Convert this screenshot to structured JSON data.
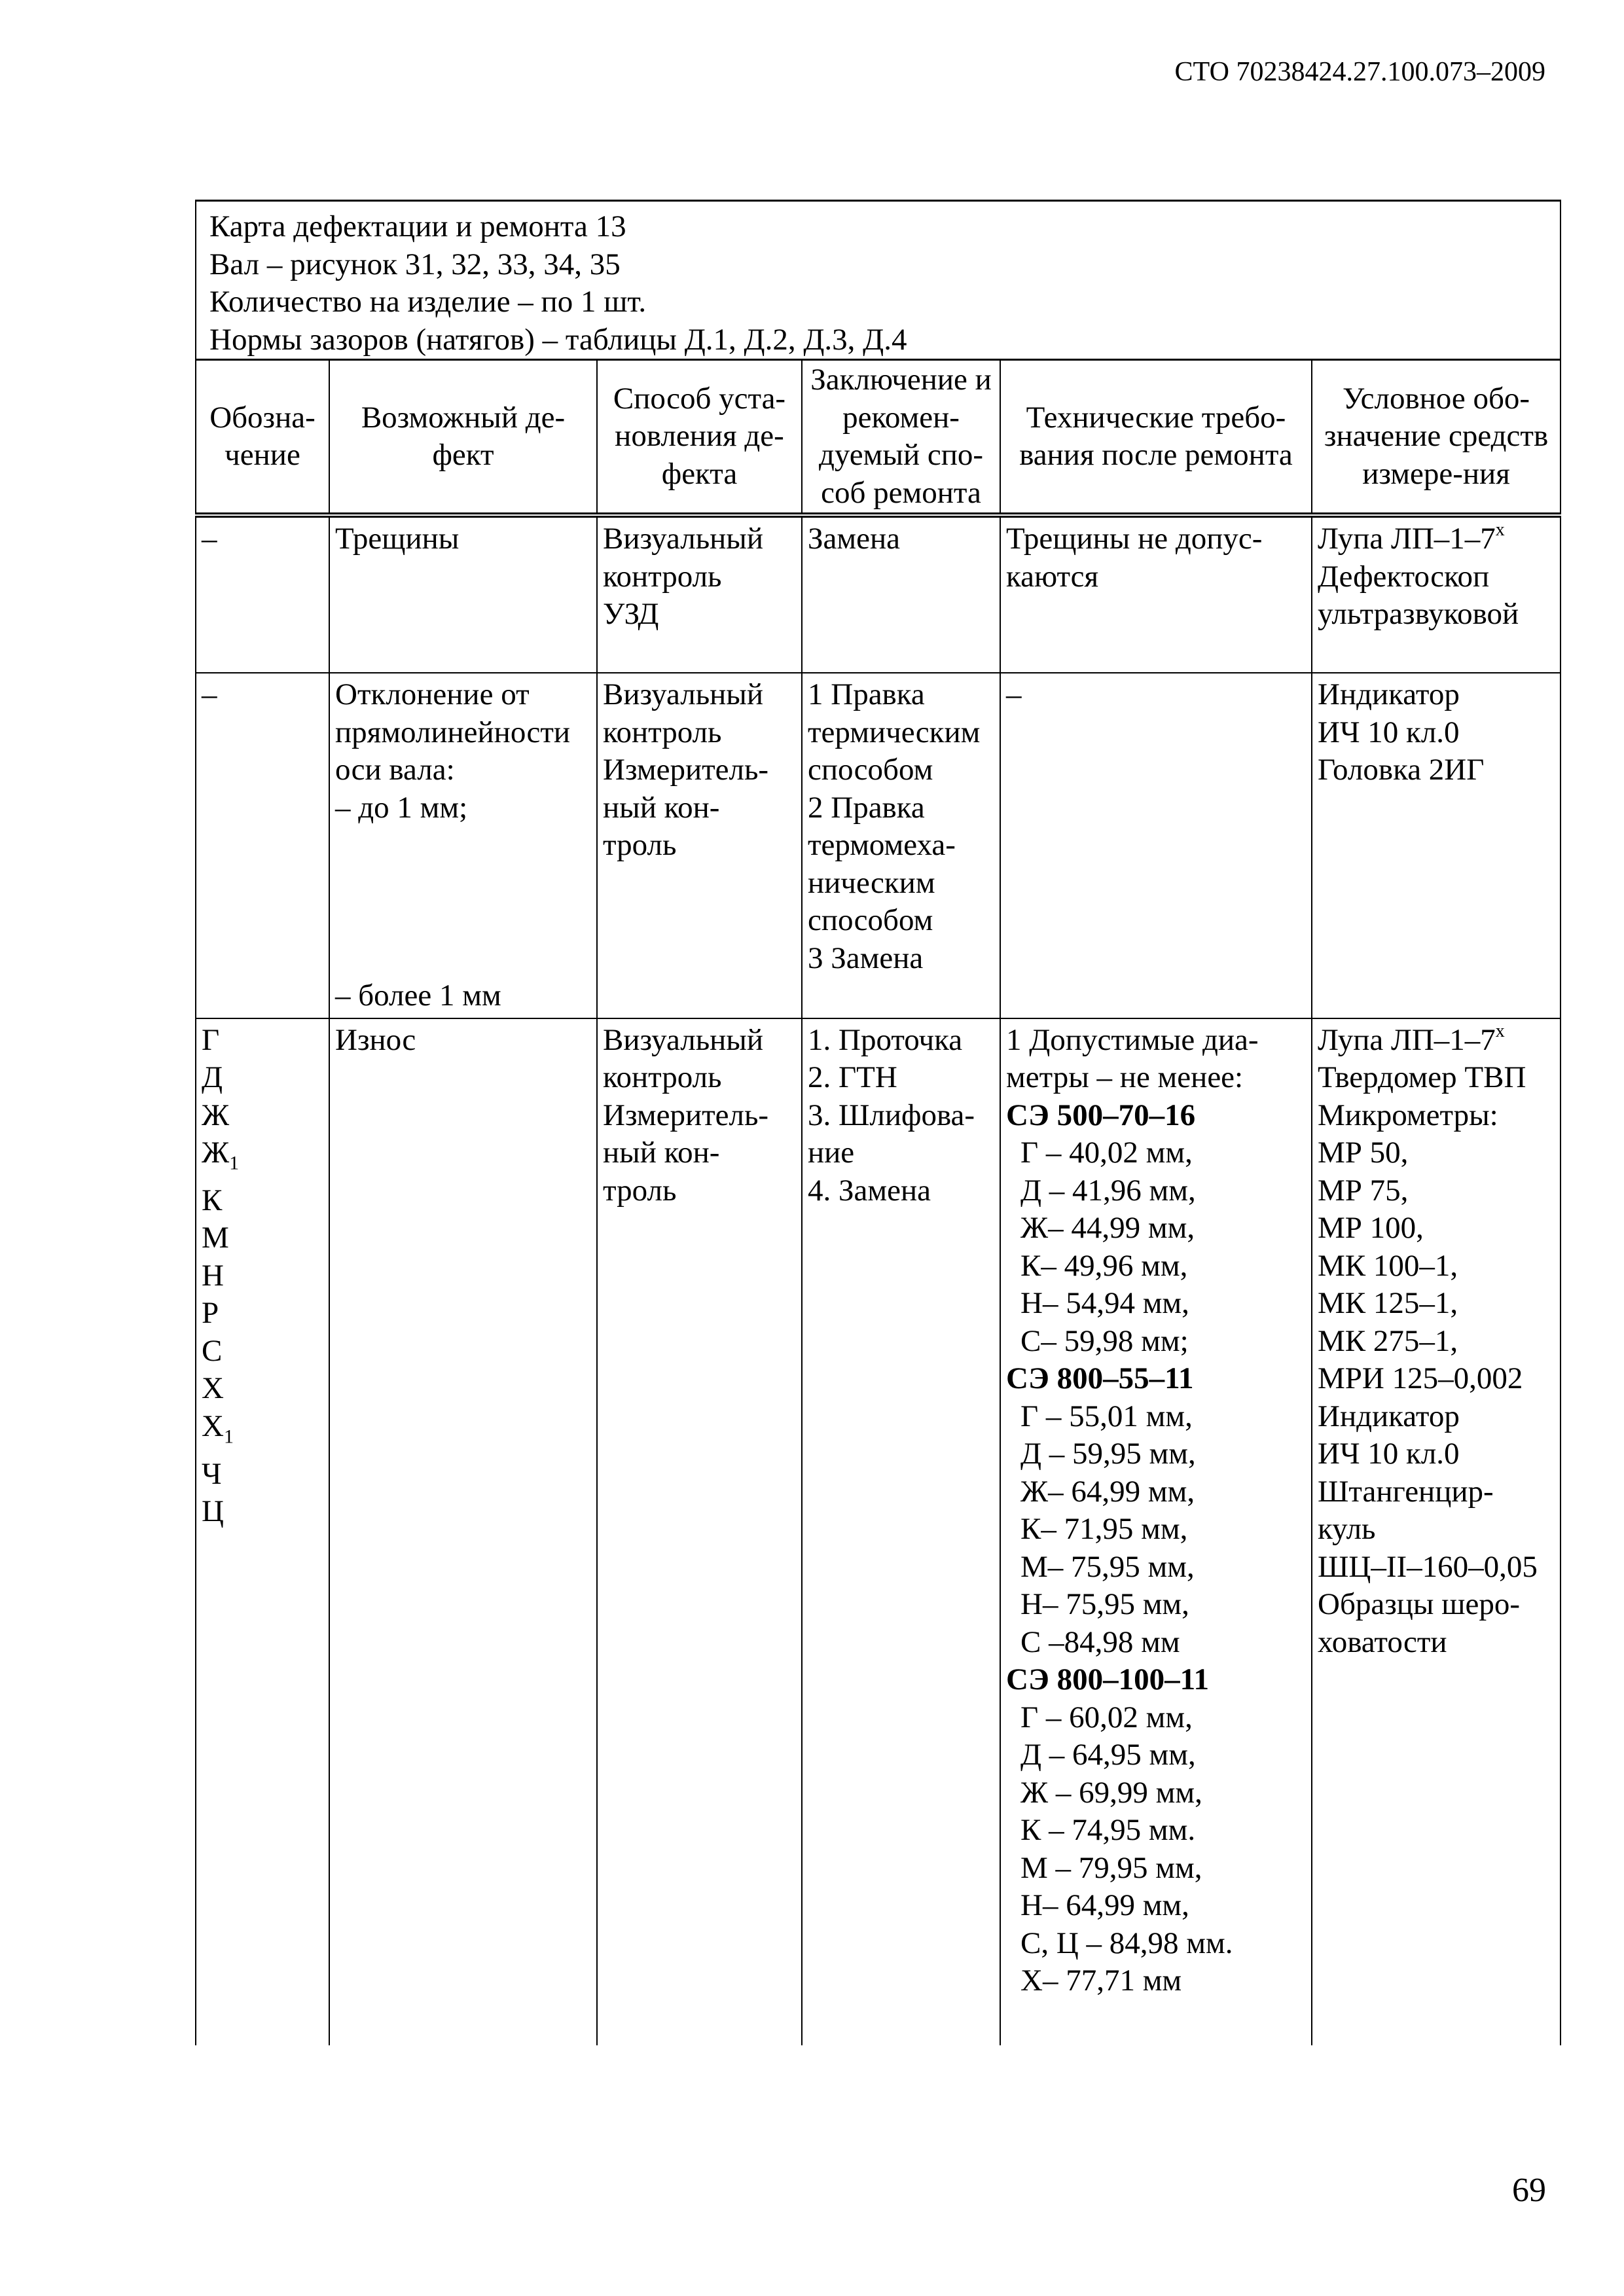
{
  "doc_code": "СТО 70238424.27.100.073–2009",
  "page_number": "69",
  "card": {
    "title": "Карта дефектации и ремонта 13",
    "part": "Вал – рисунок 31, 32, 33, 34, 35",
    "quantity": "Количество на изделие – по 1 шт.",
    "norms": "Нормы зазоров (натягов) – таблицы Д.1, Д.2, Д.3, Д.4"
  },
  "columns": [
    "Обозна-чение",
    "Возможный де-фект",
    "Способ уста-новления де-фекта",
    "Заключение и рекомен-дуемый спо-соб ремонта",
    "Технические требо-вания после ремонта",
    "Условное обо-значение средств измере-ния"
  ],
  "rows": [
    {
      "designation": [
        "–"
      ],
      "defect": [
        "Трещины"
      ],
      "method": [
        "Визуальный",
        "контроль",
        "УЗД"
      ],
      "repair": [
        "Замена"
      ],
      "requirements": [
        "Трещины не допус-",
        "каются"
      ],
      "tools": [
        "Лупа ЛП–1–7",
        "Дефектоскоп",
        "ультразвуковой"
      ],
      "tools_sup": "х"
    },
    {
      "designation": [
        "–"
      ],
      "defect": [
        "Отклонение от",
        "прямолинейности",
        "оси вала:",
        "– до 1 мм;"
      ],
      "defect_tail": "– более 1 мм",
      "method": [
        "Визуальный",
        "контроль",
        "Измеритель-",
        "ный кон-",
        "троль"
      ],
      "repair": [
        "1 Правка",
        "термическим",
        "способом",
        "2 Правка",
        "термомеха-",
        "ническим",
        "способом",
        "3 Замена"
      ],
      "requirements": [
        "–"
      ],
      "tools": [
        "Индикатор",
        "ИЧ 10 кл.0",
        "Головка 2ИГ"
      ]
    },
    {
      "designation": [
        "Г",
        "Д",
        "Ж",
        "Ж",
        "К",
        "М",
        "Н",
        "Р",
        "С",
        "Х",
        "Х",
        "Ч",
        "Ц"
      ],
      "designation_sub": "1",
      "defect": [
        "Износ"
      ],
      "method": [
        "Визуальный",
        "контроль",
        "Измеритель-",
        "ный кон-",
        "троль"
      ],
      "repair": [
        "1. Проточка",
        "2. ГТН",
        "3. Шлифова-",
        "ние",
        "4. Замена"
      ],
      "requirements_intro": [
        "1 Допустимые диа-",
        "метры – не менее:"
      ],
      "requirements_groups": [
        {
          "model": "СЭ 500–70–16",
          "values": [
            "Г – 40,02 мм,",
            "Д – 41,96 мм,",
            "Ж– 44,99 мм,",
            "К– 49,96 мм,",
            "Н– 54,94 мм,",
            "С– 59,98 мм;"
          ]
        },
        {
          "model": "СЭ 800–55–11",
          "values": [
            "Г – 55,01 мм,",
            "Д – 59,95 мм,",
            "Ж– 64,99 мм,",
            "К– 71,95 мм,",
            "М– 75,95 мм,",
            "Н– 75,95 мм,",
            "С –84,98 мм"
          ]
        },
        {
          "model": "СЭ 800–100–11",
          "values": [
            "Г – 60,02  мм,",
            "Д – 64,95 мм,",
            "Ж – 69,99 мм,",
            "К – 74,95 мм.",
            "М – 79,95 мм,",
            "Н– 64,99 мм,",
            "С, Ц – 84,98 мм.",
            "Х– 77,71 мм"
          ]
        }
      ],
      "tools": [
        "Лупа ЛП–1–7",
        "Твердомер ТВП",
        "Микрометры:",
        "МР 50,",
        "МР 75,",
        "МР 100,",
        "МК 100–1,",
        "МК 125–1,",
        "МК 275–1,",
        "МРИ 125–0,002",
        "Индикатор",
        "ИЧ 10 кл.0",
        "Штангенцир-",
        "куль",
        "ШЦ–II–160–0,05",
        "Образцы шеро-",
        "ховатости"
      ],
      "tools_sup": "х"
    }
  ]
}
